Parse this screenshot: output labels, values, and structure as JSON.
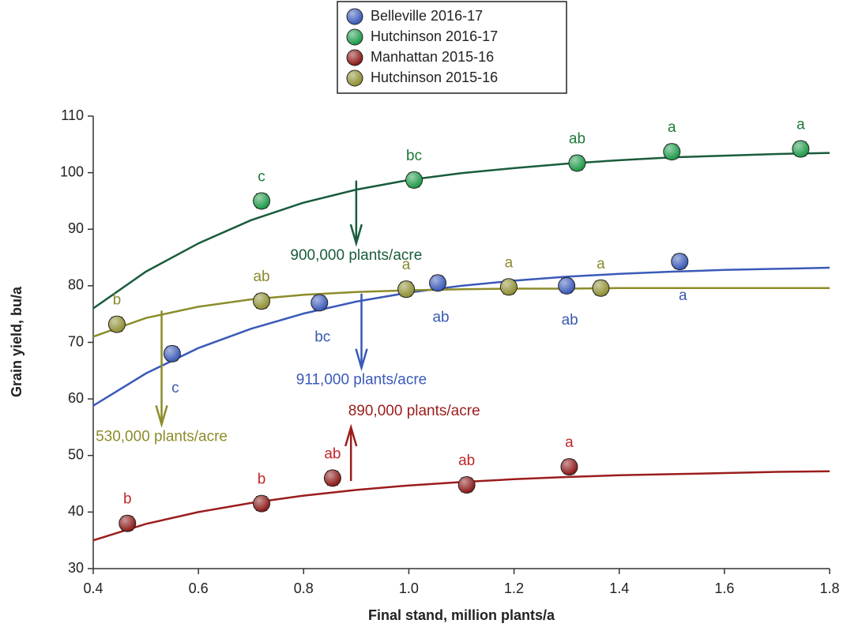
{
  "chart_data": {
    "type": "scatter",
    "xlabel": "Final stand, million plants/a",
    "ylabel": "Grain yield, bu/a",
    "xlim": [
      0.4,
      1.8
    ],
    "ylim": [
      30,
      110
    ],
    "xticks": [
      0.4,
      0.6,
      0.8,
      {
        "value": 1,
        "label": "1.0"
      },
      1.2,
      1.4,
      1.6,
      1.8
    ],
    "yticks": [
      30,
      40,
      50,
      60,
      70,
      80,
      90,
      100,
      110
    ],
    "legend": "top",
    "fit_x": [
      0.4,
      0.5,
      0.6,
      0.7,
      0.8,
      0.9,
      1.0,
      1.1,
      1.2,
      1.3,
      1.4,
      1.5,
      1.6,
      1.7,
      1.8
    ],
    "series": [
      {
        "name": "Belleville 2016-17",
        "color": "#3c5bb8",
        "curve_color": "#3a5ab8",
        "label_color": "#3a5ab0",
        "label_position": "below",
        "x": [
          0.55,
          0.83,
          1.055,
          1.3,
          1.515
        ],
        "values": [
          68,
          77,
          80.5,
          80,
          84.3
        ],
        "errors": [
          1.2,
          1.2,
          1.2,
          1.2,
          1.2
        ],
        "point_labels": [
          "c",
          "bc",
          "ab",
          "ab",
          "a"
        ],
        "fit": [
          58.8,
          64.5,
          69,
          72.4,
          75.1,
          77.2,
          78.8,
          80,
          80.9,
          81.6,
          82.1,
          82.5,
          82.8,
          83,
          83.2
        ]
      },
      {
        "name": "Hutchinson 2016-17",
        "color": "#1f9a4a",
        "curve_color": "#1a5c3c",
        "label_color": "#1d7a3a",
        "label_position": "above",
        "x": [
          0.72,
          1.01,
          1.32,
          1.5,
          1.745
        ],
        "values": [
          95,
          98.7,
          101.7,
          103.7,
          104.2
        ],
        "errors": [
          1.2,
          1.2,
          1.2,
          1.2,
          1.2
        ],
        "point_labels": [
          "c",
          "bc",
          "ab",
          "a",
          "a"
        ],
        "fit": [
          76,
          82.5,
          87.5,
          91.6,
          94.7,
          97,
          98.7,
          99.9,
          100.8,
          101.6,
          102.2,
          102.7,
          103,
          103.3,
          103.5
        ]
      },
      {
        "name": "Manhattan 2015-16",
        "color": "#8c1a1a",
        "curve_color": "#9b1c1c",
        "label_color": "#c0282a",
        "label_position": "above",
        "x": [
          0.465,
          0.72,
          0.855,
          1.11,
          1.305
        ],
        "values": [
          38,
          41.5,
          46,
          44.8,
          48
        ],
        "errors": [
          1.2,
          1.2,
          1.2,
          1.2,
          1.2
        ],
        "point_labels": [
          "b",
          "b",
          "ab",
          "ab",
          "a"
        ],
        "fit": [
          35,
          37.9,
          40,
          41.6,
          42.9,
          43.9,
          44.7,
          45.3,
          45.8,
          46.2,
          46.5,
          46.7,
          46.9,
          47.1,
          47.2
        ]
      },
      {
        "name": "Hutchinson 2015-16",
        "color": "#8f8f34",
        "curve_color": "#8c8c2c",
        "label_color": "#8a8a30",
        "label_position": "above",
        "x": [
          0.445,
          0.72,
          0.995,
          1.19,
          1.365
        ],
        "values": [
          73.2,
          77.3,
          79.4,
          79.8,
          79.6
        ],
        "errors": [
          1.2,
          1.2,
          1.2,
          1.2,
          1.2
        ],
        "point_labels": [
          "b",
          "ab",
          "a",
          "a",
          "a"
        ],
        "fit": [
          71,
          74.3,
          76.3,
          77.6,
          78.4,
          78.9,
          79.2,
          79.4,
          79.5,
          79.5,
          79.6,
          79.6,
          79.6,
          79.6,
          79.6
        ]
      }
    ],
    "arrows": [
      {
        "series": 1,
        "label": "900,000 plants/acre",
        "x": 0.9,
        "from": 98.6,
        "to": 87.5
      },
      {
        "series": 0,
        "label": "911,000 plants/acre",
        "x": 0.91,
        "from": 78.6,
        "to": 65.5
      },
      {
        "series": 3,
        "label": "530,000 plants/acre",
        "x": 0.53,
        "from": 75.6,
        "to": 55.5
      },
      {
        "series": 2,
        "label": "890,000 plants/acre",
        "x": 0.89,
        "from": 45.5,
        "to": 55
      }
    ]
  }
}
